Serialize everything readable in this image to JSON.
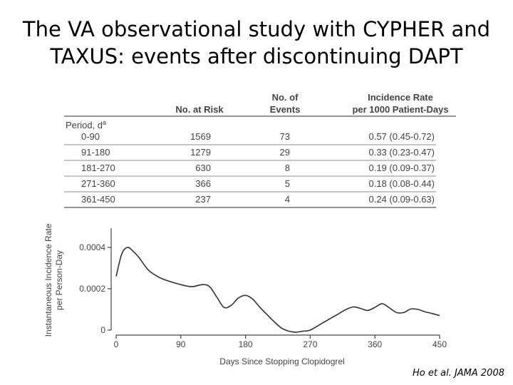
{
  "slide": {
    "title_line1": "The VA observational study with CYPHER and",
    "title_line2": "TAXUS: events after discontinuing DAPT",
    "citation": "Ho et al. JAMA 2008"
  },
  "colors": {
    "text": "#444444",
    "rule": "#555555",
    "curve": "#333333",
    "axis": "#444444"
  },
  "chart_data": [
    {
      "type": "table",
      "columns": [
        {
          "id": "period",
          "label": "Period, d"
        },
        {
          "id": "at_risk",
          "label": "No. at Risk"
        },
        {
          "id": "events",
          "label_lines": [
            "No. of",
            "Events"
          ]
        },
        {
          "id": "rate",
          "label_lines": [
            "Incidence Rate",
            "per 1000 Patient-Days"
          ]
        }
      ],
      "period_superscript": "a",
      "rows": [
        {
          "period": "0-90",
          "at_risk": "1569",
          "events": "73",
          "rate": "0.57 (0.45-0.72)"
        },
        {
          "period": "91-180",
          "at_risk": "1279",
          "events": "29",
          "rate": "0.33 (0.23-0.47)"
        },
        {
          "period": "181-270",
          "at_risk": "630",
          "events": "8",
          "rate": "0.19 (0.09-0.37)"
        },
        {
          "period": "271-360",
          "at_risk": "366",
          "events": "5",
          "rate": "0.18 (0.08-0.44)"
        },
        {
          "period": "361-450",
          "at_risk": "237",
          "events": "4",
          "rate": "0.24 (0.09-0.63)"
        }
      ]
    },
    {
      "type": "line",
      "title": "",
      "xlabel": "Days Since Stopping Clopidogrel",
      "ylabel_lines": [
        "Instantaneous Incidence Rate",
        "per Person-Day"
      ],
      "xlim": [
        0,
        450
      ],
      "ylim": [
        0,
        0.0005
      ],
      "xticks": [
        0,
        90,
        180,
        270,
        360,
        450
      ],
      "xtick_labels": [
        "0",
        "90",
        "180",
        "270",
        "360",
        "450"
      ],
      "yticks": [
        0,
        0.0002,
        0.0004
      ],
      "ytick_labels": [
        "0",
        "0.0002",
        "0.0004"
      ],
      "grid": false,
      "series": [
        {
          "name": "Instantaneous incidence rate",
          "x": [
            0,
            8,
            16,
            24,
            32,
            45,
            60,
            75,
            90,
            105,
            120,
            130,
            140,
            150,
            160,
            170,
            180,
            190,
            200,
            210,
            220,
            230,
            240,
            250,
            260,
            270,
            285,
            300,
            310,
            320,
            330,
            340,
            350,
            360,
            370,
            380,
            390,
            400,
            410,
            420,
            430,
            440,
            450
          ],
          "y": [
            0.00026,
            0.00037,
            0.0004,
            0.00038,
            0.00035,
            0.00029,
            0.000255,
            0.000235,
            0.00022,
            0.00021,
            0.00022,
            0.00021,
            0.00016,
            0.00011,
            0.00012,
            0.000155,
            0.000168,
            0.00015,
            0.00011,
            7.5e-05,
            4e-05,
            1e-05,
            -5e-06,
            -1e-05,
            -5e-06,
            0.0,
            3e-05,
            6e-05,
            8e-05,
            0.0001,
            0.000112,
            0.000105,
            9.5e-05,
            0.00011,
            0.000128,
            0.000108,
            8.5e-05,
            8.5e-05,
            0.000102,
            0.0001,
            8.8e-05,
            8e-05,
            7e-05
          ]
        }
      ]
    }
  ]
}
